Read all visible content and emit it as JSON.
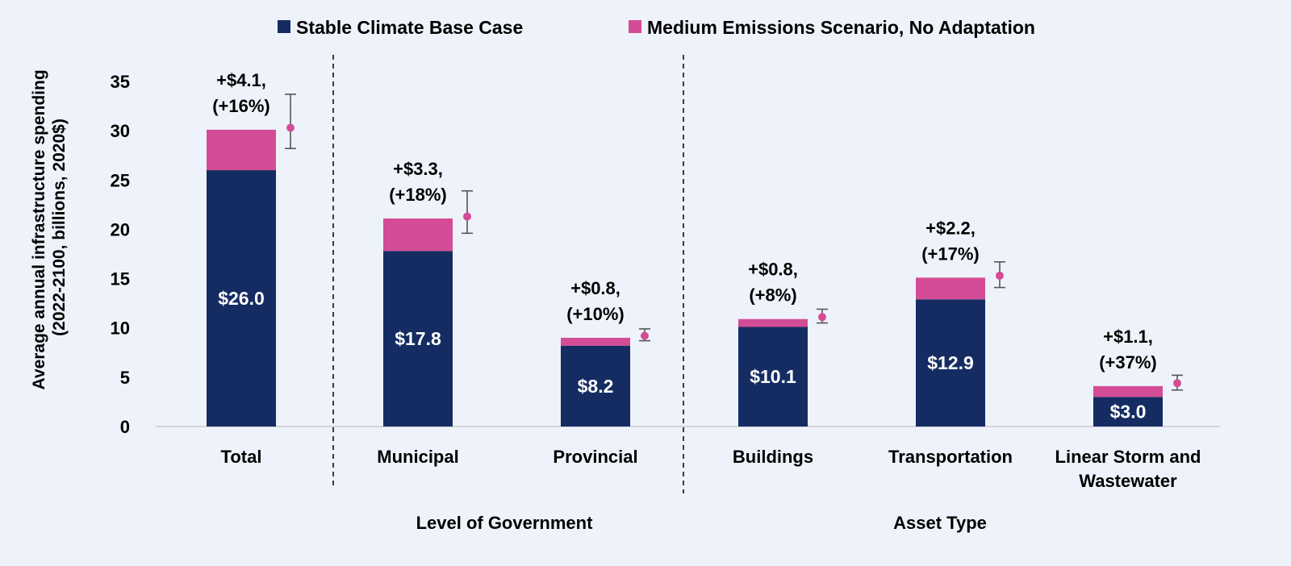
{
  "chart_data": {
    "type": "bar",
    "stacked": true,
    "ylabel_lines": [
      "Average annual infrastructure spending",
      "(2022-2100, billions, 2020$)"
    ],
    "ylim": [
      0,
      35
    ],
    "yticks": [
      0,
      5,
      10,
      15,
      20,
      25,
      30,
      35
    ],
    "categories": [
      {
        "lines": [
          "Total"
        ]
      },
      {
        "lines": [
          "Municipal"
        ]
      },
      {
        "lines": [
          "Provincial"
        ]
      },
      {
        "lines": [
          "Buildings"
        ]
      },
      {
        "lines": [
          "Transportation"
        ]
      },
      {
        "lines": [
          "Linear Storm and",
          "Wastewater"
        ]
      }
    ],
    "series": [
      {
        "name": "Stable Climate Base Case",
        "color": "#152c63",
        "values": [
          26.0,
          17.8,
          8.2,
          10.1,
          12.9,
          3.0
        ],
        "labels": [
          "$26.0",
          "$17.8",
          "$8.2",
          "$10.1",
          "$12.9",
          "$3.0"
        ]
      },
      {
        "name": "Medium Emissions Scenario, No Adaptation",
        "color": "#d44c95",
        "values": [
          4.1,
          3.3,
          0.8,
          0.8,
          2.2,
          1.1
        ],
        "annotations": [
          [
            "+$4.1,",
            "(+16%)"
          ],
          [
            "+$3.3,",
            "(+18%)"
          ],
          [
            "+$0.8,",
            "(+10%)"
          ],
          [
            "+$0.8,",
            "(+8%)"
          ],
          [
            "+$2.2,",
            "(+17%)"
          ],
          [
            "+$1.1,",
            "(+37%)"
          ]
        ]
      }
    ],
    "error_bars": [
      {
        "point": 30.3,
        "low": 28.2,
        "high": 33.7
      },
      {
        "point": 21.3,
        "low": 19.6,
        "high": 23.9
      },
      {
        "point": 9.2,
        "low": 8.7,
        "high": 9.9
      },
      {
        "point": 11.1,
        "low": 10.5,
        "high": 11.9
      },
      {
        "point": 15.3,
        "low": 14.1,
        "high": 16.7
      },
      {
        "point": 4.4,
        "low": 3.7,
        "high": 5.2
      }
    ],
    "error_marker_color": "#d44c95",
    "groups": [
      {
        "label": "Level of Government",
        "categories": [
          1,
          2
        ]
      },
      {
        "label": "Asset Type",
        "categories": [
          3,
          4,
          5
        ]
      }
    ],
    "legend_position": "top"
  }
}
